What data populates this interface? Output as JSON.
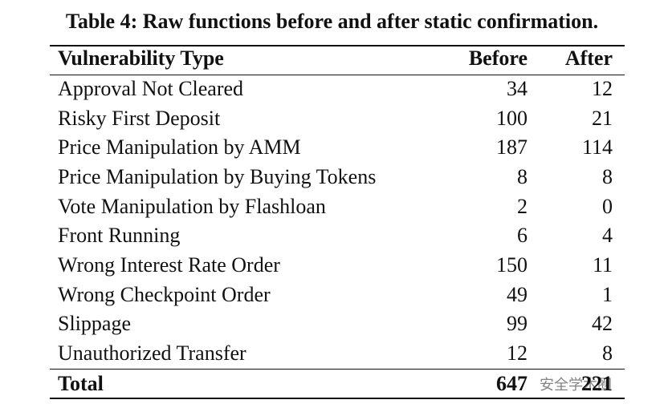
{
  "caption": "Table 4: Raw functions before and after static confirmation.",
  "table": {
    "header": [
      "Vulnerability Type",
      "Before",
      "After"
    ],
    "rows": [
      [
        "Approval Not Cleared",
        34,
        12
      ],
      [
        "Risky First Deposit",
        100,
        21
      ],
      [
        "Price Manipulation by AMM",
        187,
        114
      ],
      [
        "Price Manipulation by Buying Tokens",
        8,
        8
      ],
      [
        "Vote Manipulation by Flashloan",
        2,
        0
      ],
      [
        "Front Running",
        6,
        4
      ],
      [
        "Wrong Interest Rate Order",
        150,
        11
      ],
      [
        "Wrong Checkpoint Order",
        49,
        1
      ],
      [
        "Slippage",
        99,
        42
      ],
      [
        "Unauthorized Transfer",
        12,
        8
      ]
    ],
    "total": [
      "Total",
      647,
      221
    ]
  },
  "watermark": "安全学术圈"
}
